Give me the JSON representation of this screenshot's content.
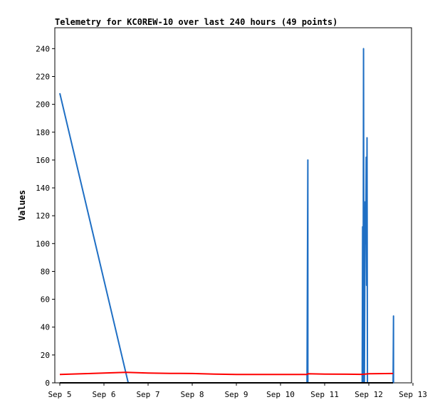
{
  "chart_data": {
    "type": "line",
    "title": "Telemetry for KC0REW-10 over last 240 hours (49 points)",
    "xlabel": "",
    "ylabel": "Values",
    "ylim": [
      0,
      255
    ],
    "xlim": [
      0,
      8
    ],
    "x_tick_labels": [
      "Sep 5",
      "Sep 6",
      "Sep 7",
      "Sep 8",
      "Sep 9",
      "Sep 10",
      "Sep 11",
      "Sep 12",
      "Sep 13"
    ],
    "x_tick_values": [
      0,
      1,
      2,
      3,
      4,
      5,
      6,
      7,
      8
    ],
    "y_ticks": [
      0,
      20,
      40,
      60,
      80,
      100,
      120,
      140,
      160,
      180,
      200,
      220,
      240
    ],
    "grid": false,
    "series": [
      {
        "color": "#1f6fc4",
        "x": [
          0.0,
          1.55,
          1.6,
          5.6,
          5.62,
          5.62,
          5.65,
          6.85,
          6.86,
          6.87,
          6.88,
          6.89,
          6.9,
          6.91,
          6.92,
          6.93,
          6.94,
          6.95,
          6.96,
          6.97,
          6.98,
          7.0,
          7.1,
          7.55,
          7.56,
          7.56
        ],
        "y": [
          208,
          0,
          0,
          0,
          160,
          0,
          0,
          0,
          112,
          0,
          240,
          45,
          0,
          75,
          130,
          100,
          162,
          70,
          176,
          0,
          0,
          0,
          0,
          0,
          48,
          0
        ]
      },
      {
        "color": "#ff0000",
        "x": [
          0.0,
          0.5,
          1.0,
          1.5,
          2.0,
          2.5,
          3.0,
          3.5,
          4.0,
          4.5,
          5.0,
          5.5,
          5.6,
          5.62,
          6.0,
          6.5,
          6.85,
          7.0,
          7.55
        ],
        "y": [
          6,
          6.5,
          7,
          7.5,
          7,
          6.8,
          6.7,
          6.3,
          6,
          6,
          6,
          6,
          6,
          6.5,
          6.3,
          6.2,
          6.1,
          6.5,
          6.7
        ]
      },
      {
        "color": "#000000",
        "x": [
          0.0,
          7.55
        ],
        "y": [
          0,
          0
        ]
      }
    ]
  }
}
